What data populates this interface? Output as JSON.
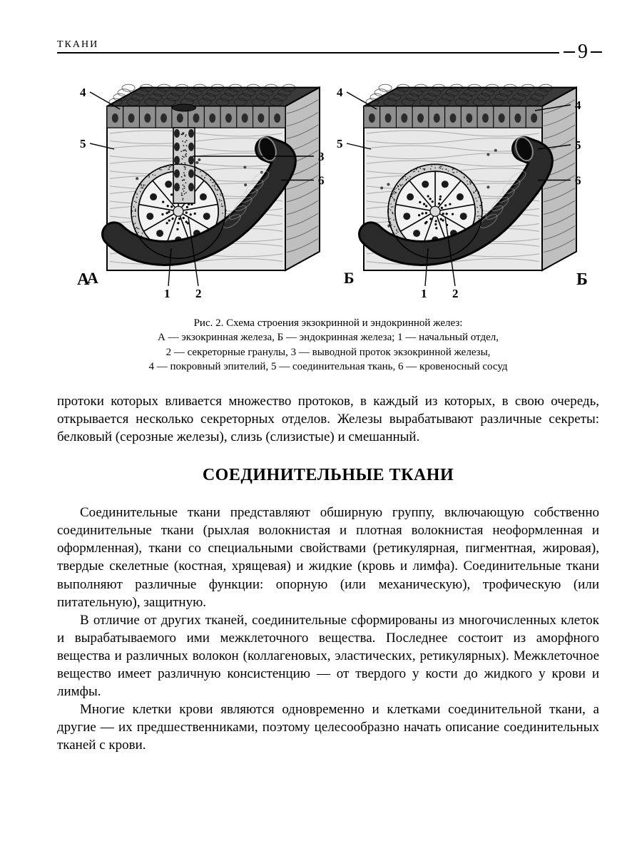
{
  "header": {
    "running_title": "ТКАНИ",
    "page_number": "9"
  },
  "figure": {
    "panel_A_label": "А",
    "panel_B_label": "Б",
    "labels_A": {
      "n1": "1",
      "n2": "2",
      "n3": "3",
      "n4": "4",
      "n5": "5",
      "n6": "6"
    },
    "labels_B": {
      "n1": "1",
      "n2": "2",
      "n4": "4",
      "n5": "5",
      "n6": "6"
    },
    "colors": {
      "outline": "#000000",
      "tissue_mid": "#bfbfbf",
      "tissue_light": "#e8e8e8",
      "tissue_dark": "#5b5b5b",
      "epi_top": "#3a3a3a",
      "epi_cells": "#8f8f8f",
      "acinus_fill": "#f2f2f2",
      "vessel": "#2a2a2a"
    }
  },
  "caption": {
    "title": "Рис. 2. Схема строения экзокринной и эндокринной желез:",
    "l1": "А — экзокринная железа, Б — эндокринная железа; 1 — начальный отдел,",
    "l2": "2 — секреторные гранулы, 3 — выводной проток экзокринной железы,",
    "l3": "4 — покровный эпителий, 5 — соединительная ткань, 6 — кровеносный сосуд"
  },
  "para_lead": "протоки которых вливается множество протоков, в каждый из которых, в свою очередь, открывается несколько секреторных отделов. Железы вырабатывают различные секреты: белковый (серозные железы), слизь (слизистые) и смешанный.",
  "section_heading": "СОЕДИНИТЕЛЬНЫЕ ТКАНИ",
  "para1": "Соединительные ткани представляют обширную группу, включающую собственно соединительные ткани (рыхлая волокнистая и плотная волокнистая неоформленная и оформленная), ткани со специальными свойствами (ретикулярная, пигментная, жировая), твердые скелетные (костная, хрящевая) и жидкие (кровь и лимфа). Соединительные ткани выполняют различные функции: опорную (или механическую), трофическую (или питательную), защитную.",
  "para2": "В отличие от других тканей, соединительные сформированы из многочисленных клеток и вырабатываемого ими межклеточного вещества. Последнее состоит из аморфного вещества и различных волокон (коллагеновых, эластических, ретикулярных). Межклеточное вещество имеет различную консистенцию — от твердого у кости до жидкого у крови и лимфы.",
  "para3": "Многие клетки крови являются одновременно и клетками соединительной ткани, а другие — их предшественниками, поэтому целесообразно начать описание соединительных тканей с крови."
}
